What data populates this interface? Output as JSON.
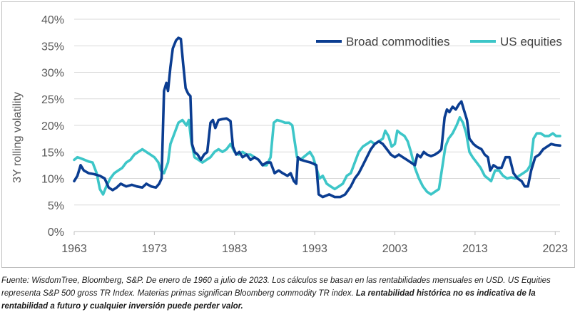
{
  "chart_data": {
    "type": "line",
    "title": "",
    "xlabel": "",
    "ylabel": "3Y rolling volatility",
    "x_range": [
      1963,
      2023.6
    ],
    "ylim": [
      0,
      40
    ],
    "y_ticks": [
      0,
      5,
      10,
      15,
      20,
      25,
      30,
      35,
      40
    ],
    "y_tick_labels": [
      "0%",
      "5%",
      "10%",
      "15%",
      "20%",
      "25%",
      "30%",
      "35%",
      "40%"
    ],
    "x_ticks": [
      1963,
      1973,
      1983,
      1993,
      2003,
      2013,
      2023
    ],
    "x_tick_labels": [
      "1963",
      "1973",
      "1983",
      "1993",
      "2003",
      "2013",
      "2023"
    ],
    "grid": "horizontal",
    "legend_position": "top-right",
    "series": [
      {
        "name": "Broad commodities",
        "color": "#0b3d91",
        "points": [
          [
            1963.0,
            9.5
          ],
          [
            1963.4,
            10.5
          ],
          [
            1963.8,
            12.5
          ],
          [
            1964.2,
            11.5
          ],
          [
            1964.8,
            11.0
          ],
          [
            1965.5,
            10.8
          ],
          [
            1966.2,
            10.5
          ],
          [
            1966.8,
            10.0
          ],
          [
            1967.3,
            8.3
          ],
          [
            1967.8,
            7.8
          ],
          [
            1968.3,
            8.3
          ],
          [
            1968.8,
            9.0
          ],
          [
            1969.5,
            8.5
          ],
          [
            1970.2,
            8.8
          ],
          [
            1970.8,
            8.5
          ],
          [
            1971.5,
            8.3
          ],
          [
            1972.0,
            9.0
          ],
          [
            1972.6,
            8.5
          ],
          [
            1973.2,
            8.3
          ],
          [
            1973.6,
            9.0
          ],
          [
            1973.9,
            10.0
          ],
          [
            1974.2,
            26.5
          ],
          [
            1974.5,
            28.0
          ],
          [
            1974.7,
            26.5
          ],
          [
            1975.0,
            31.0
          ],
          [
            1975.3,
            34.5
          ],
          [
            1975.7,
            36.0
          ],
          [
            1976.0,
            36.5
          ],
          [
            1976.3,
            36.3
          ],
          [
            1976.6,
            31.5
          ],
          [
            1976.9,
            27.0
          ],
          [
            1977.2,
            26.0
          ],
          [
            1977.5,
            25.5
          ],
          [
            1977.7,
            16.5
          ],
          [
            1978.0,
            15.0
          ],
          [
            1978.4,
            14.5
          ],
          [
            1978.8,
            13.5
          ],
          [
            1979.2,
            14.5
          ],
          [
            1979.6,
            15.0
          ],
          [
            1980.0,
            20.5
          ],
          [
            1980.3,
            21.0
          ],
          [
            1980.6,
            19.5
          ],
          [
            1981.0,
            21.0
          ],
          [
            1981.5,
            21.2
          ],
          [
            1982.0,
            21.3
          ],
          [
            1982.5,
            20.8
          ],
          [
            1982.8,
            16.0
          ],
          [
            1983.2,
            14.5
          ],
          [
            1983.6,
            15.0
          ],
          [
            1984.0,
            14.0
          ],
          [
            1984.5,
            14.5
          ],
          [
            1985.0,
            13.5
          ],
          [
            1985.5,
            14.0
          ],
          [
            1986.0,
            13.5
          ],
          [
            1986.5,
            12.5
          ],
          [
            1987.0,
            13.0
          ],
          [
            1987.5,
            13.0
          ],
          [
            1988.0,
            11.0
          ],
          [
            1988.5,
            11.5
          ],
          [
            1989.0,
            11.0
          ],
          [
            1989.6,
            10.5
          ],
          [
            1990.0,
            11.0
          ],
          [
            1990.4,
            9.5
          ],
          [
            1990.7,
            9.0
          ],
          [
            1990.9,
            14.0
          ],
          [
            1991.3,
            13.5
          ],
          [
            1992.0,
            13.2
          ],
          [
            1992.5,
            13.0
          ],
          [
            1992.8,
            12.8
          ],
          [
            1993.2,
            12.5
          ],
          [
            1993.5,
            7.0
          ],
          [
            1994.0,
            6.5
          ],
          [
            1994.8,
            7.0
          ],
          [
            1995.5,
            6.5
          ],
          [
            1996.2,
            6.5
          ],
          [
            1996.8,
            7.0
          ],
          [
            1997.5,
            8.5
          ],
          [
            1998.0,
            10.0
          ],
          [
            1998.5,
            11.0
          ],
          [
            1999.0,
            12.5
          ],
          [
            1999.5,
            14.0
          ],
          [
            2000.0,
            15.5
          ],
          [
            2000.5,
            16.5
          ],
          [
            2001.0,
            17.0
          ],
          [
            2001.5,
            16.5
          ],
          [
            2002.0,
            15.5
          ],
          [
            2002.5,
            14.5
          ],
          [
            2003.0,
            14.0
          ],
          [
            2003.5,
            14.5
          ],
          [
            2004.0,
            14.0
          ],
          [
            2004.5,
            13.5
          ],
          [
            2005.0,
            13.0
          ],
          [
            2005.5,
            12.5
          ],
          [
            2005.8,
            14.5
          ],
          [
            2006.2,
            14.0
          ],
          [
            2006.6,
            15.0
          ],
          [
            2007.0,
            14.5
          ],
          [
            2007.5,
            14.2
          ],
          [
            2008.0,
            14.5
          ],
          [
            2008.5,
            15.0
          ],
          [
            2008.8,
            15.5
          ],
          [
            2009.2,
            21.5
          ],
          [
            2009.5,
            23.0
          ],
          [
            2009.8,
            22.5
          ],
          [
            2010.2,
            23.5
          ],
          [
            2010.6,
            23.0
          ],
          [
            2011.0,
            24.0
          ],
          [
            2011.3,
            24.5
          ],
          [
            2011.6,
            23.0
          ],
          [
            2012.0,
            21.0
          ],
          [
            2012.3,
            17.5
          ],
          [
            2012.8,
            16.5
          ],
          [
            2013.2,
            16.0
          ],
          [
            2013.8,
            15.5
          ],
          [
            2014.2,
            14.5
          ],
          [
            2014.6,
            14.0
          ],
          [
            2014.9,
            11.5
          ],
          [
            2015.3,
            12.5
          ],
          [
            2015.8,
            12.0
          ],
          [
            2016.3,
            12.0
          ],
          [
            2016.8,
            14.0
          ],
          [
            2017.3,
            14.0
          ],
          [
            2017.8,
            11.0
          ],
          [
            2018.3,
            10.0
          ],
          [
            2018.8,
            9.5
          ],
          [
            2019.2,
            8.5
          ],
          [
            2019.6,
            8.5
          ],
          [
            2020.0,
            11.5
          ],
          [
            2020.5,
            14.0
          ],
          [
            2021.0,
            14.5
          ],
          [
            2021.5,
            15.5
          ],
          [
            2022.0,
            16.0
          ],
          [
            2022.5,
            16.5
          ],
          [
            2023.0,
            16.3
          ],
          [
            2023.6,
            16.2
          ]
        ]
      },
      {
        "name": "US equities",
        "color": "#3dc6c8",
        "points": [
          [
            1963.0,
            13.5
          ],
          [
            1963.4,
            14.0
          ],
          [
            1963.8,
            13.8
          ],
          [
            1964.3,
            13.5
          ],
          [
            1964.8,
            13.2
          ],
          [
            1965.3,
            13.0
          ],
          [
            1965.8,
            11.0
          ],
          [
            1966.2,
            8.0
          ],
          [
            1966.6,
            7.0
          ],
          [
            1967.0,
            8.5
          ],
          [
            1967.5,
            10.0
          ],
          [
            1968.0,
            11.0
          ],
          [
            1968.5,
            11.5
          ],
          [
            1969.0,
            12.0
          ],
          [
            1969.5,
            13.0
          ],
          [
            1970.0,
            13.5
          ],
          [
            1970.5,
            14.5
          ],
          [
            1971.0,
            15.0
          ],
          [
            1971.5,
            15.5
          ],
          [
            1972.0,
            15.0
          ],
          [
            1972.5,
            14.5
          ],
          [
            1973.0,
            14.0
          ],
          [
            1973.5,
            13.0
          ],
          [
            1973.8,
            11.5
          ],
          [
            1974.2,
            11.0
          ],
          [
            1974.7,
            13.0
          ],
          [
            1975.0,
            16.5
          ],
          [
            1975.5,
            18.5
          ],
          [
            1976.0,
            20.5
          ],
          [
            1976.5,
            21.0
          ],
          [
            1977.0,
            20.0
          ],
          [
            1977.3,
            21.0
          ],
          [
            1977.6,
            17.0
          ],
          [
            1978.0,
            14.0
          ],
          [
            1978.5,
            13.5
          ],
          [
            1979.0,
            13.0
          ],
          [
            1979.5,
            13.5
          ],
          [
            1980.0,
            14.0
          ],
          [
            1980.5,
            15.0
          ],
          [
            1981.0,
            15.5
          ],
          [
            1981.5,
            15.0
          ],
          [
            1982.0,
            15.5
          ],
          [
            1982.5,
            16.5
          ],
          [
            1983.0,
            15.0
          ],
          [
            1983.5,
            14.5
          ],
          [
            1984.0,
            15.0
          ],
          [
            1984.5,
            14.5
          ],
          [
            1985.0,
            14.5
          ],
          [
            1985.5,
            14.0
          ],
          [
            1986.0,
            13.5
          ],
          [
            1986.5,
            12.5
          ],
          [
            1987.0,
            12.5
          ],
          [
            1987.5,
            14.0
          ],
          [
            1987.9,
            20.5
          ],
          [
            1988.3,
            21.0
          ],
          [
            1988.8,
            20.8
          ],
          [
            1989.3,
            20.5
          ],
          [
            1989.8,
            20.5
          ],
          [
            1990.2,
            20.0
          ],
          [
            1990.5,
            17.0
          ],
          [
            1990.8,
            14.0
          ],
          [
            1991.2,
            13.5
          ],
          [
            1991.6,
            14.0
          ],
          [
            1992.0,
            14.5
          ],
          [
            1992.4,
            15.0
          ],
          [
            1992.8,
            14.0
          ],
          [
            1993.2,
            12.0
          ],
          [
            1993.6,
            10.0
          ],
          [
            1994.0,
            10.5
          ],
          [
            1994.5,
            9.0
          ],
          [
            1995.0,
            8.5
          ],
          [
            1995.5,
            8.0
          ],
          [
            1996.0,
            8.5
          ],
          [
            1996.5,
            9.0
          ],
          [
            1997.0,
            10.5
          ],
          [
            1997.5,
            11.0
          ],
          [
            1998.0,
            13.0
          ],
          [
            1998.5,
            15.0
          ],
          [
            1999.0,
            16.0
          ],
          [
            1999.5,
            16.5
          ],
          [
            2000.0,
            17.0
          ],
          [
            2000.5,
            16.5
          ],
          [
            2001.0,
            17.0
          ],
          [
            2001.5,
            17.5
          ],
          [
            2001.8,
            19.0
          ],
          [
            2002.2,
            18.0
          ],
          [
            2002.6,
            16.0
          ],
          [
            2003.0,
            16.5
          ],
          [
            2003.3,
            19.0
          ],
          [
            2003.7,
            18.5
          ],
          [
            2004.2,
            18.0
          ],
          [
            2004.6,
            17.0
          ],
          [
            2005.0,
            15.0
          ],
          [
            2005.5,
            12.0
          ],
          [
            2006.0,
            10.0
          ],
          [
            2006.5,
            8.5
          ],
          [
            2007.0,
            7.5
          ],
          [
            2007.5,
            7.0
          ],
          [
            2008.0,
            7.5
          ],
          [
            2008.5,
            8.0
          ],
          [
            2008.9,
            12.0
          ],
          [
            2009.3,
            16.0
          ],
          [
            2009.7,
            17.5
          ],
          [
            2010.2,
            18.5
          ],
          [
            2010.7,
            20.0
          ],
          [
            2011.1,
            21.5
          ],
          [
            2011.5,
            20.5
          ],
          [
            2011.9,
            18.5
          ],
          [
            2012.3,
            15.0
          ],
          [
            2012.7,
            14.0
          ],
          [
            2013.2,
            13.0
          ],
          [
            2013.7,
            12.0
          ],
          [
            2014.2,
            10.5
          ],
          [
            2014.6,
            10.0
          ],
          [
            2015.0,
            9.5
          ],
          [
            2015.5,
            11.5
          ],
          [
            2016.0,
            11.5
          ],
          [
            2016.5,
            10.5
          ],
          [
            2017.0,
            10.0
          ],
          [
            2017.5,
            10.2
          ],
          [
            2018.0,
            10.0
          ],
          [
            2018.5,
            10.5
          ],
          [
            2019.0,
            11.0
          ],
          [
            2019.5,
            11.5
          ],
          [
            2019.9,
            12.5
          ],
          [
            2020.3,
            17.5
          ],
          [
            2020.7,
            18.5
          ],
          [
            2021.2,
            18.5
          ],
          [
            2021.7,
            18.0
          ],
          [
            2022.2,
            18.0
          ],
          [
            2022.7,
            18.5
          ],
          [
            2023.1,
            18.0
          ],
          [
            2023.6,
            18.0
          ]
        ]
      }
    ]
  },
  "caption": {
    "text": "Fuente: WisdomTree, Bloomberg, S&P. De enero de 1960 a julio de 2023. Los cálculos se basan en las rentabilidades mensuales en USD. US Equities representa S&P 500 gross TR Index. Materias primas significan Bloomberg commodity TR index. ",
    "bold_text": "La rentabilidad histórica no es indicativa de la rentabilidad a futuro y cualquier inversión puede perder valor."
  }
}
